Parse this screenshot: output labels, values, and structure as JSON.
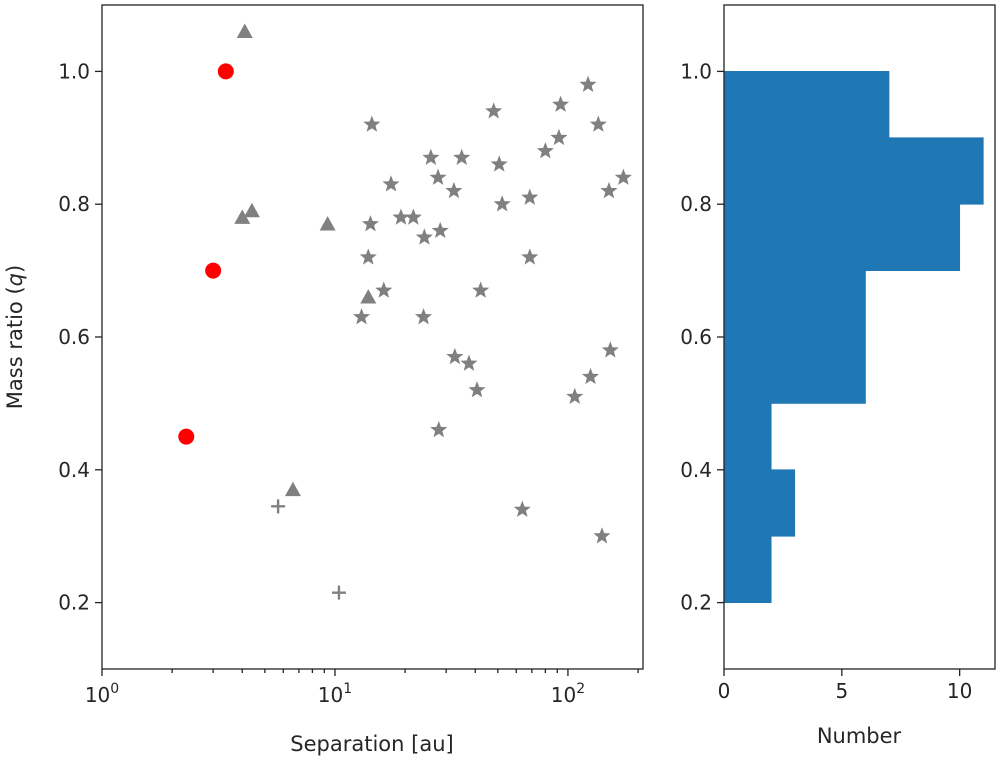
{
  "chart_data": [
    {
      "type": "scatter",
      "xscale": "log",
      "xlim": [
        1,
        210
      ],
      "ylim": [
        0.1,
        1.1
      ],
      "xlabel": "Separation [au]",
      "ylabel": "Mass ratio (",
      "ylabel_var": "q",
      "ylabel_end": ")",
      "xticks": [
        {
          "value": 1,
          "base": "10",
          "exp": "0"
        },
        {
          "value": 10,
          "base": "10",
          "exp": "1"
        },
        {
          "value": 100,
          "base": "10",
          "exp": "2"
        }
      ],
      "yticks": [
        {
          "value": 0.2,
          "label": "0.2"
        },
        {
          "value": 0.4,
          "label": "0.4"
        },
        {
          "value": 0.6,
          "label": "0.6"
        },
        {
          "value": 0.8,
          "label": "0.8"
        },
        {
          "value": 1.0,
          "label": "1.0"
        }
      ],
      "series": [
        {
          "name": "circles",
          "marker": "circle",
          "color": "#ff0000",
          "points": [
            [
              3.4,
              1.0
            ],
            [
              3.0,
              0.7
            ],
            [
              2.3,
              0.45
            ]
          ]
        },
        {
          "name": "triangles",
          "marker": "triangle",
          "color": "#808080",
          "points": [
            [
              4.1,
              1.06
            ],
            [
              4.0,
              0.78
            ],
            [
              4.4,
              0.79
            ],
            [
              9.3,
              0.77
            ],
            [
              13.9,
              0.66
            ],
            [
              6.6,
              0.37
            ]
          ]
        },
        {
          "name": "stars",
          "marker": "star",
          "color": "#808080",
          "points": [
            [
              14.4,
              0.92
            ],
            [
              25.8,
              0.87
            ],
            [
              35,
              0.87
            ],
            [
              48,
              0.94
            ],
            [
              50.7,
              0.86
            ],
            [
              93,
              0.95
            ],
            [
              122,
              0.98
            ],
            [
              135,
              0.92
            ],
            [
              91.5,
              0.9
            ],
            [
              80,
              0.88
            ],
            [
              17.4,
              0.83
            ],
            [
              27.7,
              0.84
            ],
            [
              32.4,
              0.82
            ],
            [
              52.2,
              0.8
            ],
            [
              68.6,
              0.81
            ],
            [
              150,
              0.82
            ],
            [
              173,
              0.84
            ],
            [
              19.2,
              0.78
            ],
            [
              21.7,
              0.78
            ],
            [
              14.2,
              0.77
            ],
            [
              24.2,
              0.75
            ],
            [
              28.3,
              0.76
            ],
            [
              13.9,
              0.72
            ],
            [
              68.6,
              0.72
            ],
            [
              16.2,
              0.67
            ],
            [
              42.2,
              0.67
            ],
            [
              13,
              0.63
            ],
            [
              24,
              0.63
            ],
            [
              32.7,
              0.57
            ],
            [
              37.6,
              0.56
            ],
            [
              40.7,
              0.52
            ],
            [
              152,
              0.58
            ],
            [
              125,
              0.54
            ],
            [
              107,
              0.51
            ],
            [
              27.9,
              0.46
            ],
            [
              63.7,
              0.34
            ],
            [
              140,
              0.3
            ]
          ]
        },
        {
          "name": "plus",
          "marker": "plus",
          "color": "#808080",
          "points": [
            [
              5.7,
              0.345
            ],
            [
              10.4,
              0.215
            ]
          ]
        }
      ]
    },
    {
      "type": "bar",
      "orientation": "horizontal",
      "color": "#1f77b4",
      "xlabel": "Number",
      "xlim": [
        0,
        11.5
      ],
      "ylim": [
        0.1,
        1.1
      ],
      "xticks": [
        {
          "value": 0,
          "label": "0"
        },
        {
          "value": 5,
          "label": "5"
        },
        {
          "value": 10,
          "label": "10"
        }
      ],
      "yticks": [
        {
          "value": 0.2,
          "label": "0.2"
        },
        {
          "value": 0.4,
          "label": "0.4"
        },
        {
          "value": 0.6,
          "label": "0.6"
        },
        {
          "value": 0.8,
          "label": "0.8"
        },
        {
          "value": 1.0,
          "label": "1.0"
        }
      ],
      "bins": [
        {
          "from": 0.2,
          "to": 0.3,
          "count": 2
        },
        {
          "from": 0.3,
          "to": 0.4,
          "count": 3
        },
        {
          "from": 0.4,
          "to": 0.5,
          "count": 2
        },
        {
          "from": 0.5,
          "to": 0.6,
          "count": 6
        },
        {
          "from": 0.6,
          "to": 0.7,
          "count": 6
        },
        {
          "from": 0.7,
          "to": 0.8,
          "count": 10
        },
        {
          "from": 0.8,
          "to": 0.9,
          "count": 11
        },
        {
          "from": 0.9,
          "to": 1.0,
          "count": 7
        }
      ]
    }
  ]
}
